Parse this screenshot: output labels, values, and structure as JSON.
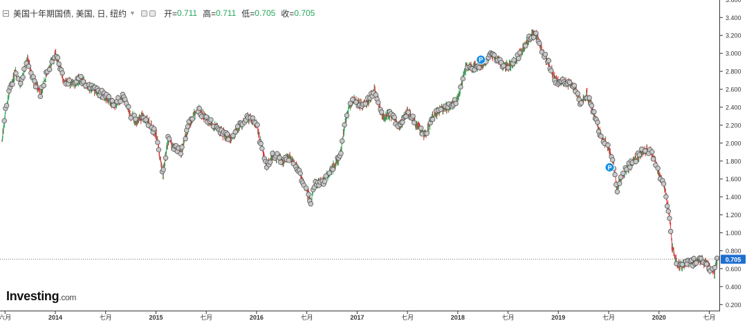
{
  "header": {
    "title": "美国十年期国债, 美国, 日, 纽约",
    "open_label": "开=",
    "open_value": "0.711",
    "high_label": "高=",
    "high_value": "0.711",
    "low_label": "低=",
    "low_value": "0.705",
    "close_label": "收=",
    "close_value": "0.705"
  },
  "logo": {
    "text": "Investing",
    "suffix": ".com"
  },
  "colors": {
    "up": "#26a65b",
    "down": "#e0303a",
    "price_tag": "#1f6fd1",
    "marker": "#c8c8c8",
    "pivot_badge": "#1a8fe3"
  },
  "chart_data": {
    "type": "candlestick",
    "title": "美国十年期国债, 美国, 日, 纽约",
    "ylim": [
      0.2,
      3.6
    ],
    "y_ticks": [
      0.2,
      0.4,
      0.6,
      0.8,
      1.0,
      1.2,
      1.4,
      1.6,
      1.8,
      2.0,
      2.2,
      2.4,
      2.6,
      2.8,
      3.0,
      3.2,
      3.4,
      3.6
    ],
    "y_tick_labels": [
      "0.200",
      "0.400",
      "0.600",
      "0.800",
      "1.000",
      "1.200",
      "1.400",
      "1.600",
      "1.800",
      "2.000",
      "2.200",
      "2.400",
      "2.600",
      "2.800",
      "3.000",
      "3.200",
      "3.400",
      "3.600"
    ],
    "xlim": [
      2013.45,
      2020.6
    ],
    "x_ticks": [
      {
        "t": 2013.5,
        "label": "六月"
      },
      {
        "t": 2014.0,
        "label": "2014"
      },
      {
        "t": 2014.5,
        "label": "七月"
      },
      {
        "t": 2015.0,
        "label": "2015"
      },
      {
        "t": 2015.5,
        "label": "七月"
      },
      {
        "t": 2016.0,
        "label": "2016"
      },
      {
        "t": 2016.5,
        "label": "七月"
      },
      {
        "t": 2017.0,
        "label": "2017"
      },
      {
        "t": 2017.5,
        "label": "七月"
      },
      {
        "t": 2018.0,
        "label": "2018"
      },
      {
        "t": 2018.5,
        "label": "七月"
      },
      {
        "t": 2019.0,
        "label": "2019"
      },
      {
        "t": 2019.5,
        "label": "七月"
      },
      {
        "t": 2020.0,
        "label": "2020"
      },
      {
        "t": 2020.5,
        "label": "七月"
      }
    ],
    "last_price": 0.705,
    "last_price_label": "0.705",
    "pivot_markers": [
      {
        "t": 2018.23,
        "y": 2.93,
        "label": "P"
      },
      {
        "t": 2019.51,
        "y": 1.73,
        "label": "P"
      }
    ],
    "series": [
      {
        "values": [
          [
            2013.47,
            2.02
          ],
          [
            2013.5,
            2.35
          ],
          [
            2013.55,
            2.6
          ],
          [
            2013.6,
            2.8
          ],
          [
            2013.66,
            2.65
          ],
          [
            2013.72,
            2.95
          ],
          [
            2013.78,
            2.72
          ],
          [
            2013.85,
            2.55
          ],
          [
            2013.92,
            2.8
          ],
          [
            2014.0,
            3.0
          ],
          [
            2014.08,
            2.72
          ],
          [
            2014.15,
            2.65
          ],
          [
            2014.25,
            2.72
          ],
          [
            2014.33,
            2.62
          ],
          [
            2014.42,
            2.58
          ],
          [
            2014.5,
            2.52
          ],
          [
            2014.58,
            2.42
          ],
          [
            2014.67,
            2.52
          ],
          [
            2014.75,
            2.32
          ],
          [
            2014.8,
            2.25
          ],
          [
            2014.88,
            2.3
          ],
          [
            2014.95,
            2.18
          ],
          [
            2015.0,
            2.1
          ],
          [
            2015.04,
            1.85
          ],
          [
            2015.07,
            1.65
          ],
          [
            2015.12,
            2.05
          ],
          [
            2015.17,
            1.95
          ],
          [
            2015.25,
            1.9
          ],
          [
            2015.33,
            2.22
          ],
          [
            2015.42,
            2.38
          ],
          [
            2015.5,
            2.28
          ],
          [
            2015.58,
            2.18
          ],
          [
            2015.67,
            2.1
          ],
          [
            2015.75,
            2.05
          ],
          [
            2015.83,
            2.2
          ],
          [
            2015.92,
            2.28
          ],
          [
            2016.0,
            2.22
          ],
          [
            2016.04,
            2.0
          ],
          [
            2016.1,
            1.75
          ],
          [
            2016.17,
            1.88
          ],
          [
            2016.25,
            1.8
          ],
          [
            2016.33,
            1.85
          ],
          [
            2016.42,
            1.7
          ],
          [
            2016.5,
            1.45
          ],
          [
            2016.54,
            1.36
          ],
          [
            2016.58,
            1.55
          ],
          [
            2016.67,
            1.58
          ],
          [
            2016.75,
            1.72
          ],
          [
            2016.83,
            1.85
          ],
          [
            2016.88,
            2.25
          ],
          [
            2016.95,
            2.48
          ],
          [
            2017.0,
            2.45
          ],
          [
            2017.08,
            2.42
          ],
          [
            2017.17,
            2.58
          ],
          [
            2017.25,
            2.3
          ],
          [
            2017.33,
            2.32
          ],
          [
            2017.42,
            2.18
          ],
          [
            2017.5,
            2.35
          ],
          [
            2017.58,
            2.22
          ],
          [
            2017.67,
            2.08
          ],
          [
            2017.75,
            2.3
          ],
          [
            2017.83,
            2.38
          ],
          [
            2017.92,
            2.4
          ],
          [
            2018.0,
            2.5
          ],
          [
            2018.08,
            2.85
          ],
          [
            2018.17,
            2.85
          ],
          [
            2018.25,
            2.88
          ],
          [
            2018.33,
            3.0
          ],
          [
            2018.42,
            2.9
          ],
          [
            2018.5,
            2.85
          ],
          [
            2018.58,
            2.92
          ],
          [
            2018.67,
            3.1
          ],
          [
            2018.75,
            3.22
          ],
          [
            2018.79,
            3.18
          ],
          [
            2018.83,
            3.05
          ],
          [
            2018.92,
            2.85
          ],
          [
            2018.96,
            2.72
          ],
          [
            2019.0,
            2.68
          ],
          [
            2019.08,
            2.68
          ],
          [
            2019.17,
            2.6
          ],
          [
            2019.22,
            2.45
          ],
          [
            2019.28,
            2.55
          ],
          [
            2019.33,
            2.42
          ],
          [
            2019.42,
            2.08
          ],
          [
            2019.5,
            1.95
          ],
          [
            2019.55,
            1.75
          ],
          [
            2019.58,
            1.48
          ],
          [
            2019.62,
            1.6
          ],
          [
            2019.67,
            1.7
          ],
          [
            2019.75,
            1.8
          ],
          [
            2019.83,
            1.9
          ],
          [
            2019.88,
            1.92
          ],
          [
            2019.95,
            1.85
          ],
          [
            2020.0,
            1.65
          ],
          [
            2020.05,
            1.52
          ],
          [
            2020.1,
            1.2
          ],
          [
            2020.13,
            0.85
          ],
          [
            2020.17,
            0.7
          ],
          [
            2020.2,
            0.62
          ],
          [
            2020.25,
            0.65
          ],
          [
            2020.33,
            0.67
          ],
          [
            2020.42,
            0.7
          ],
          [
            2020.5,
            0.62
          ],
          [
            2020.55,
            0.55
          ],
          [
            2020.58,
            0.705
          ]
        ]
      }
    ]
  }
}
